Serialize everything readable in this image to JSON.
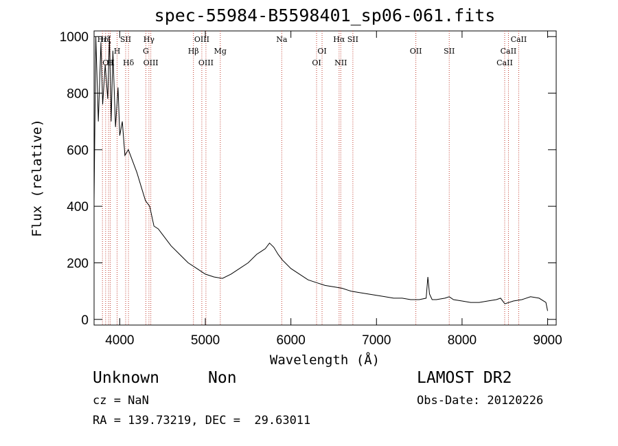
{
  "chart_data": {
    "type": "line",
    "title": "spec-55984-B5598401_sp06-061.fits",
    "xlabel": "Wavelength (Å)",
    "ylabel": "Flux (relative)",
    "xlim": [
      3700,
      9100
    ],
    "ylim": [
      -20,
      1020
    ],
    "x_ticks": [
      4000,
      5000,
      6000,
      7000,
      8000,
      9000
    ],
    "y_ticks": [
      0,
      200,
      400,
      600,
      800,
      1000
    ],
    "grid": false,
    "line_color": "#000000",
    "marker_color": "#c0392b",
    "series": [
      {
        "x": [
          3700,
          3720,
          3750,
          3780,
          3800,
          3830,
          3860,
          3880,
          3900,
          3920,
          3950,
          3980,
          4000,
          4030,
          4060,
          4100,
          4150,
          4200,
          4250,
          4300,
          4350,
          4400,
          4450,
          4500,
          4600,
          4700,
          4800,
          4900,
          5000,
          5100,
          5200,
          5300,
          5400,
          5500,
          5600,
          5700,
          5750,
          5800,
          5850,
          5900,
          6000,
          6100,
          6200,
          6300,
          6400,
          6500,
          6600,
          6700,
          6800,
          6900,
          7000,
          7100,
          7200,
          7300,
          7400,
          7500,
          7580,
          7600,
          7620,
          7650,
          7700,
          7800,
          7850,
          7900,
          8000,
          8100,
          8200,
          8300,
          8400,
          8450,
          8500,
          8600,
          8700,
          8800,
          8900,
          8980,
          9000
        ],
        "y": [
          420,
          1000,
          700,
          980,
          760,
          900,
          780,
          1000,
          700,
          950,
          680,
          820,
          650,
          700,
          580,
          600,
          560,
          520,
          470,
          420,
          400,
          330,
          320,
          300,
          260,
          230,
          200,
          180,
          160,
          150,
          145,
          160,
          180,
          200,
          230,
          250,
          270,
          255,
          230,
          210,
          180,
          160,
          140,
          130,
          120,
          115,
          110,
          100,
          95,
          90,
          85,
          80,
          75,
          75,
          70,
          70,
          75,
          150,
          90,
          70,
          70,
          75,
          80,
          70,
          65,
          60,
          60,
          65,
          70,
          75,
          55,
          65,
          70,
          80,
          75,
          60,
          30
        ]
      }
    ]
  },
  "lines": [
    {
      "label": "Hε",
      "x": 3798,
      "row": 0
    },
    {
      "label": "Hζ",
      "x": 3835,
      "row": 0
    },
    {
      "label": "OII",
      "x": 3869,
      "row": 2
    },
    {
      "label": "H",
      "x": 3889,
      "row": 2
    },
    {
      "label": "H",
      "x": 3969,
      "row": 1
    },
    {
      "label": "SII",
      "x": 4069,
      "row": 0
    },
    {
      "label": "Hδ",
      "x": 4102,
      "row": 2
    },
    {
      "label": "Hγ",
      "x": 4341,
      "row": 0
    },
    {
      "label": "G",
      "x": 4305,
      "row": 1
    },
    {
      "label": "OIII",
      "x": 4363,
      "row": 2
    },
    {
      "label": "Hβ",
      "x": 4861,
      "row": 1
    },
    {
      "label": "OIII",
      "x": 4959,
      "row": 0
    },
    {
      "label": "OIII",
      "x": 5007,
      "row": 2
    },
    {
      "label": "Mg",
      "x": 5175,
      "row": 1
    },
    {
      "label": "Na",
      "x": 5893,
      "row": 0
    },
    {
      "label": "OI",
      "x": 6300,
      "row": 2
    },
    {
      "label": "OI",
      "x": 6364,
      "row": 1
    },
    {
      "label": "Hα",
      "x": 6563,
      "row": 0
    },
    {
      "label": "NII",
      "x": 6583,
      "row": 2
    },
    {
      "label": "SII",
      "x": 6724,
      "row": 0
    },
    {
      "label": "OII",
      "x": 7460,
      "row": 1
    },
    {
      "label": "SII",
      "x": 7850,
      "row": 1
    },
    {
      "label": "CaII",
      "x": 8498,
      "row": 2
    },
    {
      "label": "CaII",
      "x": 8542,
      "row": 1
    },
    {
      "label": "CaII",
      "x": 8662,
      "row": 0
    }
  ],
  "info": {
    "class": "Unknown",
    "subclass": "Non",
    "survey": "LAMOST DR2",
    "cz": "cz = NaN",
    "obs_date": "Obs-Date: 20120226",
    "coords": "RA = 139.73219, DEC =  29.63011"
  }
}
